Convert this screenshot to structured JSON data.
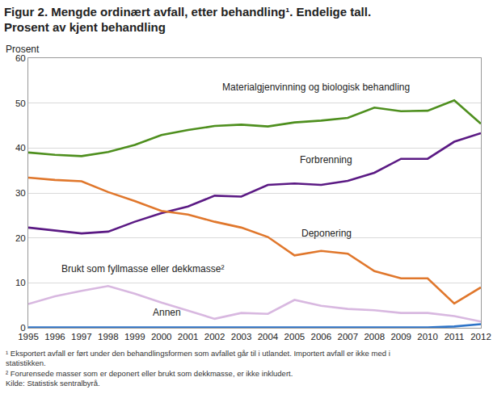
{
  "chart_data": {
    "type": "line",
    "title": [
      "Figur 2. Mengde ordinært avfall, etter behandling¹. Endelige tall.",
      "Prosent av kjent behandling"
    ],
    "ylabel": "Prosent",
    "categories": [
      "1995",
      "1996",
      "1997",
      "1998",
      "1999",
      "2000",
      "2001",
      "2002",
      "2003",
      "2004",
      "2005",
      "2006",
      "2007",
      "2008",
      "2009",
      "2010",
      "2011",
      "2012"
    ],
    "ylim": [
      0,
      60
    ],
    "yticks": [
      0,
      10,
      20,
      30,
      40,
      50,
      60
    ],
    "grid": true,
    "series": [
      {
        "name": "Materialgjenvinning og biologisk behandling",
        "color": "#4e8f1e",
        "values": [
          39,
          38.5,
          38.2,
          39.1,
          40.7,
          42.9,
          44,
          44.9,
          45.2,
          44.8,
          45.7,
          46.1,
          46.7,
          49,
          48.2,
          48.3,
          50.6,
          45.4
        ]
      },
      {
        "name": "Forbrenning",
        "color": "#5b1a84",
        "values": [
          22.3,
          21.6,
          21,
          21.4,
          23.6,
          25.5,
          27,
          29.4,
          29.2,
          31.8,
          32.1,
          31.8,
          32.7,
          34.5,
          37.6,
          37.6,
          41.4,
          43.3
        ]
      },
      {
        "name": "Deponering",
        "color": "#e0772c",
        "values": [
          33.4,
          32.9,
          32.6,
          30.2,
          28.2,
          26,
          25.2,
          23.6,
          22.3,
          20.2,
          16.1,
          17.1,
          16.5,
          12.6,
          11,
          11,
          5.4,
          9
        ]
      },
      {
        "name": "Brukt som fyllmasse eller dekkmasse²",
        "color": "#d8b8e0",
        "values": [
          5.3,
          7,
          8.2,
          9.3,
          7.6,
          5.6,
          3.8,
          2,
          3.3,
          3.1,
          6.2,
          4.9,
          4.2,
          3.9,
          3.3,
          3.3,
          2.6,
          1.4
        ]
      },
      {
        "name": "Annen",
        "color": "#2e74c8",
        "values": [
          0.1,
          0.1,
          0.1,
          0.1,
          0.1,
          0.1,
          0.1,
          0.1,
          0.1,
          0.1,
          0.1,
          0.1,
          0.1,
          0.1,
          0.1,
          0.1,
          0.3,
          0.8
        ]
      }
    ],
    "footnotes": [
      [
        "¹ Eksportert avfall er ført under den behandlingsformen som avfallet går til i utlandet. Importert avfall er ikke med i",
        "statistikken."
      ],
      [
        "² Forurensede masser som er deponert eller brukt som dekkmasse, er ikke inkludert."
      ],
      [
        "Kilde: Statistisk sentralbyrå."
      ]
    ]
  }
}
